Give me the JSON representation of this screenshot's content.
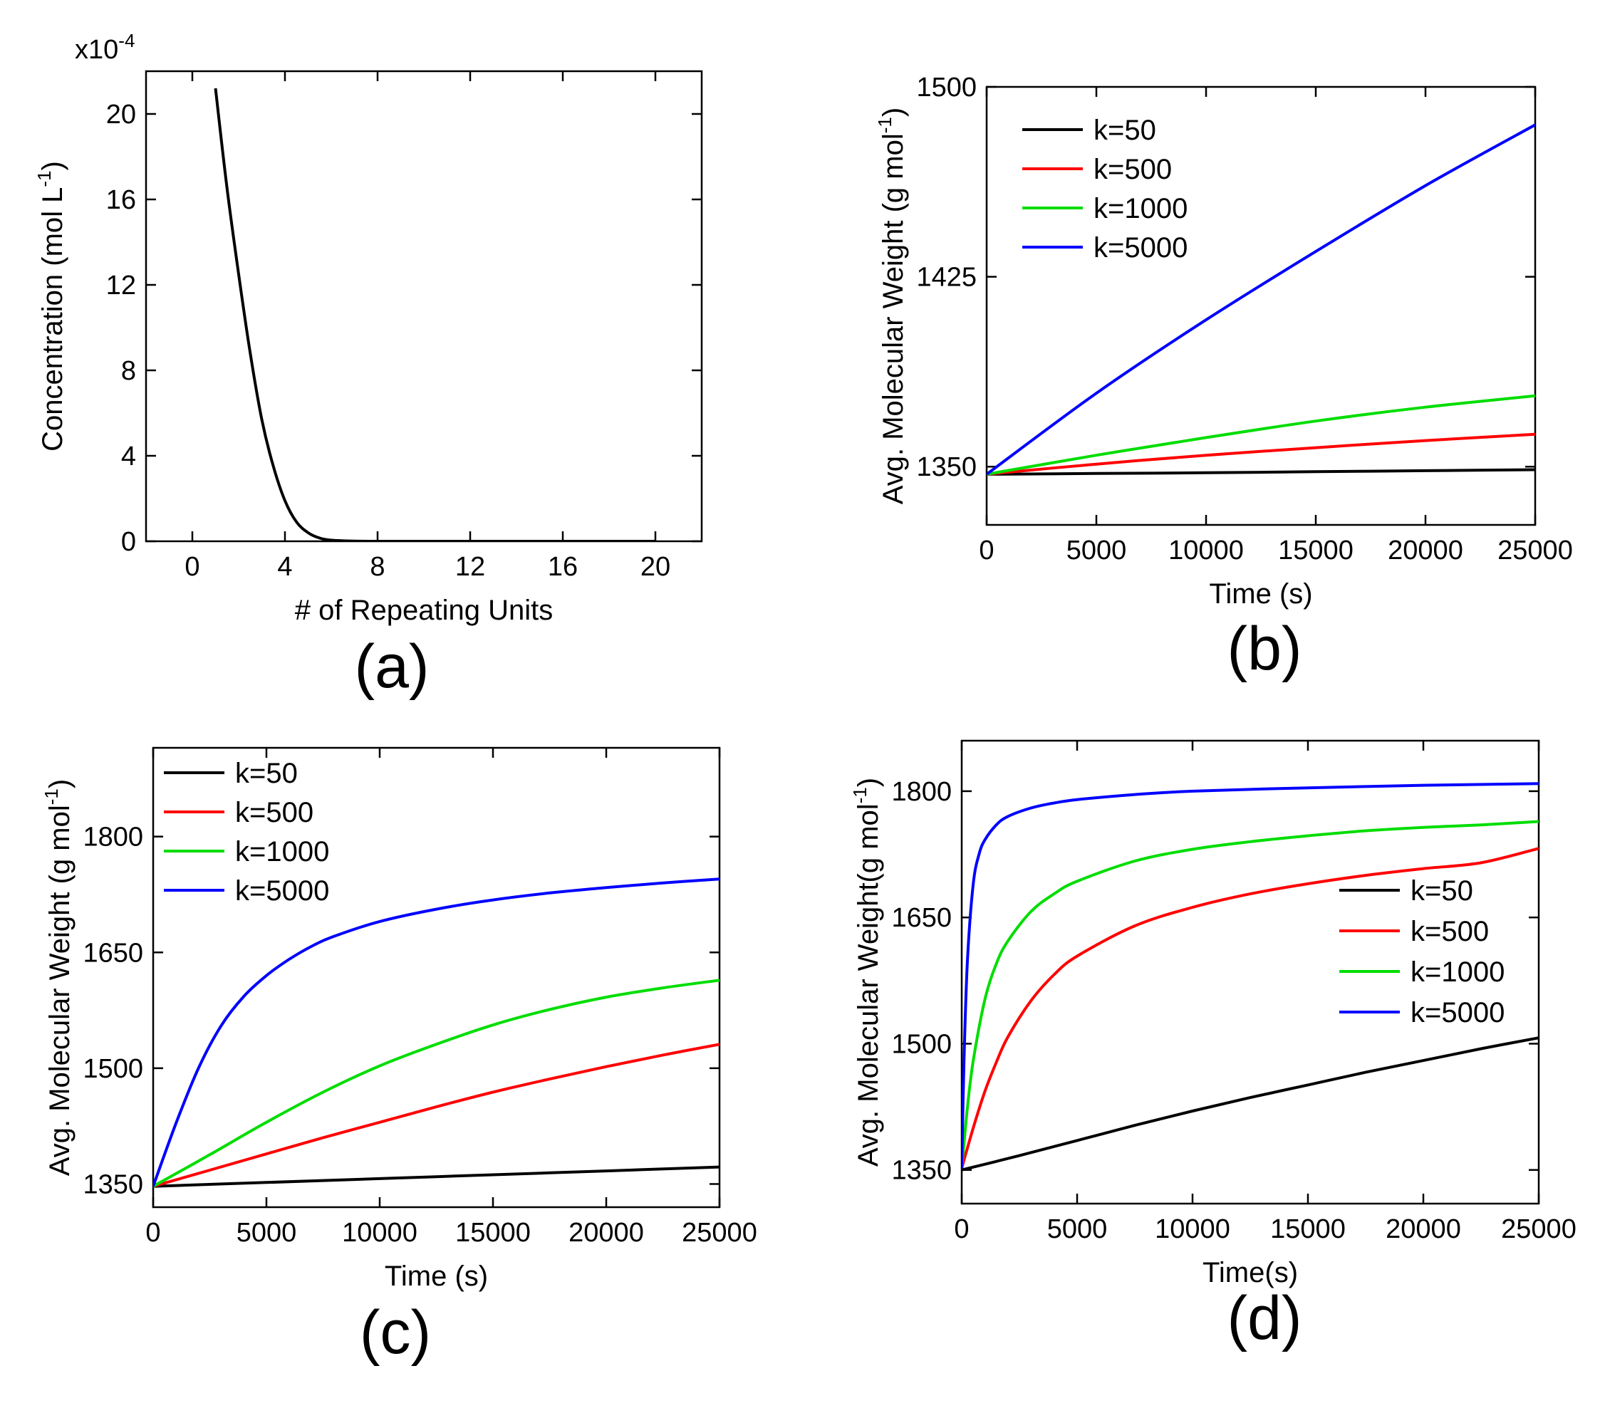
{
  "chart_data": [
    {
      "id": "a",
      "panel_label": "(a)",
      "type": "line",
      "xlabel": "# of Repeating Units",
      "ylabel": "Concentration (mol L",
      "ylabel_sup": "-1",
      "ylabel_close": ")",
      "y_multiplier": "x10",
      "y_multiplier_exp": "-4",
      "xlim": [
        -2,
        22
      ],
      "ylim": [
        0,
        22
      ],
      "xticks": [
        0,
        4,
        8,
        12,
        16,
        20
      ],
      "yticks": [
        0,
        4,
        8,
        12,
        16,
        20
      ],
      "legend": "none",
      "series": [
        {
          "color": "#000000",
          "x": [
            1,
            1.5,
            2,
            2.5,
            3,
            3.5,
            4,
            4.5,
            5,
            5.5,
            6,
            7,
            8,
            10,
            12,
            16,
            20
          ],
          "y": [
            21.2,
            16.5,
            12.5,
            8.8,
            5.7,
            3.5,
            1.9,
            0.9,
            0.4,
            0.15,
            0.05,
            0.01,
            0,
            0,
            0,
            0,
            0
          ]
        }
      ]
    },
    {
      "id": "b",
      "panel_label": "(b)",
      "type": "line",
      "xlabel": "Time (s)",
      "ylabel": "Avg. Molecular Weight (g mol",
      "ylabel_sup": "-1",
      "ylabel_close": ")",
      "xlim": [
        0,
        25000
      ],
      "ylim": [
        1327,
        1500
      ],
      "xticks": [
        0,
        5000,
        10000,
        15000,
        20000,
        25000
      ],
      "yticks": [
        1350,
        1425,
        1500
      ],
      "legend": "top-left",
      "series": [
        {
          "name": "k=50",
          "color": "#000000",
          "x": [
            0,
            5000,
            10000,
            15000,
            20000,
            25000
          ],
          "y": [
            1347,
            1347.3,
            1347.6,
            1348,
            1348.4,
            1348.8
          ]
        },
        {
          "name": "k=500",
          "color": "#ff0000",
          "x": [
            0,
            5000,
            10000,
            15000,
            20000,
            25000
          ],
          "y": [
            1347,
            1351,
            1354.5,
            1357.5,
            1360.3,
            1362.8
          ]
        },
        {
          "name": "k=1000",
          "color": "#00dd00",
          "x": [
            0,
            5000,
            10000,
            15000,
            20000,
            25000
          ],
          "y": [
            1347,
            1354.5,
            1361.5,
            1368,
            1373.5,
            1378
          ]
        },
        {
          "name": "k=5000",
          "color": "#0000ff",
          "x": [
            0,
            5000,
            10000,
            15000,
            20000,
            25000
          ],
          "y": [
            1347,
            1379,
            1408,
            1435,
            1461,
            1485
          ]
        }
      ]
    },
    {
      "id": "c",
      "panel_label": "(c)",
      "type": "line",
      "xlabel": "Time (s)",
      "ylabel": "Avg. Molecular Weight (g mol",
      "ylabel_sup": "-1",
      "ylabel_close": ")",
      "xlim": [
        0,
        25000
      ],
      "ylim": [
        1320,
        1915
      ],
      "xticks": [
        0,
        5000,
        10000,
        15000,
        20000,
        25000
      ],
      "yticks": [
        1350,
        1500,
        1650,
        1800
      ],
      "legend": "top-left",
      "series": [
        {
          "name": "k=50",
          "color": "#000000",
          "x": [
            0,
            5000,
            10000,
            15000,
            20000,
            25000
          ],
          "y": [
            1347,
            1352,
            1357,
            1362,
            1367,
            1372
          ]
        },
        {
          "name": "k=500",
          "color": "#ff0000",
          "x": [
            0,
            2500,
            5000,
            7500,
            10000,
            12500,
            15000,
            17500,
            20000,
            22500,
            25000
          ],
          "y": [
            1347,
            1368,
            1389,
            1410,
            1430,
            1450,
            1469,
            1486,
            1502,
            1517,
            1531
          ]
        },
        {
          "name": "k=1000",
          "color": "#00dd00",
          "x": [
            0,
            2500,
            5000,
            7500,
            10000,
            12500,
            15000,
            17500,
            20000,
            22500,
            25000
          ],
          "y": [
            1347,
            1388,
            1430,
            1469,
            1503,
            1531,
            1556,
            1576,
            1592,
            1604,
            1614
          ]
        },
        {
          "name": "k=5000",
          "color": "#0000ff",
          "x": [
            0,
            1000,
            2000,
            3000,
            4000,
            5000,
            6000,
            7000,
            8000,
            10000,
            12500,
            15000,
            17500,
            20000,
            22500,
            25000
          ],
          "y": [
            1347,
            1428,
            1500,
            1555,
            1593,
            1620,
            1641,
            1658,
            1671,
            1690,
            1706,
            1718,
            1727,
            1734,
            1740,
            1745
          ]
        }
      ]
    },
    {
      "id": "d",
      "panel_label": "(d)",
      "type": "line",
      "xlabel": "Time(s)",
      "ylabel": "Avg. Molecular Weight(g mol",
      "ylabel_sup": "-1",
      "ylabel_close": ")",
      "xlim": [
        0,
        25000
      ],
      "ylim": [
        1310,
        1860
      ],
      "xticks": [
        0,
        5000,
        10000,
        15000,
        20000,
        25000
      ],
      "yticks": [
        1350,
        1500,
        1650,
        1800
      ],
      "legend": "center-right",
      "series": [
        {
          "name": "k=50",
          "color": "#000000",
          "x": [
            0,
            2500,
            5000,
            7500,
            10000,
            12500,
            15000,
            17500,
            20000,
            22500,
            25000
          ],
          "y": [
            1350,
            1367,
            1385,
            1403,
            1420,
            1436,
            1451,
            1466,
            1480,
            1494,
            1507
          ]
        },
        {
          "name": "k=500",
          "color": "#ff0000",
          "x": [
            0,
            500,
            1000,
            1500,
            2000,
            3000,
            4000,
            5000,
            7500,
            10000,
            12500,
            15000,
            17500,
            20000,
            22500,
            25000
          ],
          "y": [
            1352,
            1400,
            1443,
            1478,
            1508,
            1551,
            1582,
            1604,
            1640,
            1662,
            1678,
            1690,
            1700,
            1708,
            1715,
            1732
          ]
        },
        {
          "name": "k=1000",
          "color": "#00dd00",
          "x": [
            0,
            250,
            500,
            1000,
            1500,
            2000,
            3000,
            4000,
            5000,
            7500,
            10000,
            12500,
            15000,
            17500,
            20000,
            22500,
            25000
          ],
          "y": [
            1352,
            1425,
            1480,
            1552,
            1595,
            1622,
            1657,
            1678,
            1693,
            1717,
            1731,
            1740,
            1747,
            1753,
            1757,
            1760,
            1764
          ]
        },
        {
          "name": "k=5000",
          "color": "#0000ff",
          "x": [
            0,
            100,
            250,
            500,
            750,
            1000,
            1500,
            2000,
            3000,
            4000,
            5000,
            7500,
            10000,
            15000,
            20000,
            25000
          ],
          "y": [
            1352,
            1480,
            1600,
            1690,
            1725,
            1742,
            1760,
            1770,
            1780,
            1786,
            1790,
            1796,
            1800,
            1804,
            1807,
            1809
          ]
        }
      ]
    }
  ]
}
